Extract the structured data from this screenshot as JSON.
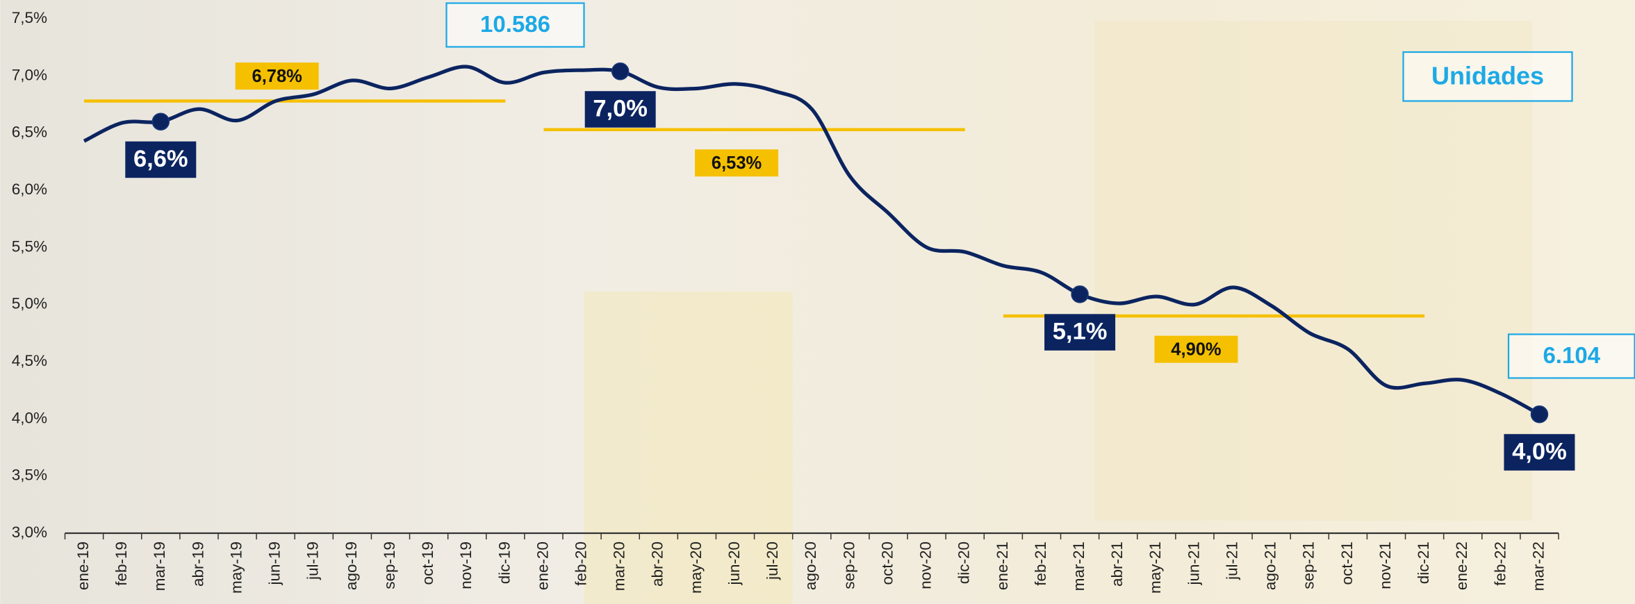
{
  "chart_data": {
    "type": "line",
    "categories": [
      "ene-19",
      "feb-19",
      "mar-19",
      "abr-19",
      "may-19",
      "jun-19",
      "jul-19",
      "ago-19",
      "sep-19",
      "oct-19",
      "nov-19",
      "dic-19",
      "ene-20",
      "feb-20",
      "mar-20",
      "abr-20",
      "may-20",
      "jun-20",
      "jul-20",
      "ago-20",
      "sep-20",
      "oct-20",
      "nov-20",
      "dic-20",
      "ene-21",
      "feb-21",
      "mar-21",
      "abr-21",
      "may-21",
      "jun-21",
      "jul-21",
      "ago-21",
      "sep-21",
      "oct-21",
      "nov-21",
      "dic-21",
      "ene-22",
      "feb-22",
      "mar-22"
    ],
    "series": [
      {
        "color": "#0b2460",
        "values": [
          6.43,
          6.59,
          6.6,
          6.71,
          6.61,
          6.78,
          6.84,
          6.96,
          6.89,
          6.99,
          7.08,
          6.94,
          7.03,
          7.05,
          7.04,
          6.9,
          6.89,
          6.93,
          6.87,
          6.71,
          6.12,
          5.8,
          5.5,
          5.46,
          5.34,
          5.28,
          5.09,
          5.01,
          5.07,
          5.0,
          5.15,
          4.99,
          4.75,
          4.61,
          4.29,
          4.31,
          4.34,
          4.22,
          4.04
        ],
        "value_labels": [
          null,
          null,
          "6,6%",
          null,
          null,
          null,
          null,
          null,
          null,
          null,
          null,
          null,
          null,
          null,
          "7,0%",
          null,
          null,
          null,
          null,
          null,
          null,
          null,
          null,
          null,
          null,
          null,
          "5,1%",
          null,
          null,
          null,
          null,
          null,
          null,
          null,
          null,
          null,
          null,
          null,
          "4,0%"
        ]
      }
    ],
    "averages": [
      {
        "label": "6,78%",
        "value": 6.78,
        "from": "ene-19",
        "to": "dic-19"
      },
      {
        "label": "6,53%",
        "value": 6.53,
        "from": "ene-20",
        "to": "dic-20"
      },
      {
        "label": "4,90%",
        "value": 4.9,
        "from": "ene-21",
        "to": "dic-21"
      }
    ],
    "average_color": "#f5c000",
    "annotations": [
      {
        "text": "10.586"
      },
      {
        "text": "Unidades"
      },
      {
        "text": "6.104"
      }
    ],
    "ylim": [
      3.0,
      7.5
    ],
    "yticks": [
      {
        "value": 3.0,
        "label": "3,0%"
      },
      {
        "value": 3.5,
        "label": "3,5%"
      },
      {
        "value": 4.0,
        "label": "4,0%"
      },
      {
        "value": 4.5,
        "label": "4,5%"
      },
      {
        "value": 5.0,
        "label": "5,0%"
      },
      {
        "value": 5.5,
        "label": "5,5%"
      },
      {
        "value": 6.0,
        "label": "6,0%"
      },
      {
        "value": 6.5,
        "label": "6,5%"
      },
      {
        "value": 7.0,
        "label": "7,0%"
      },
      {
        "value": 7.5,
        "label": "7,5%"
      }
    ],
    "grid": false
  }
}
